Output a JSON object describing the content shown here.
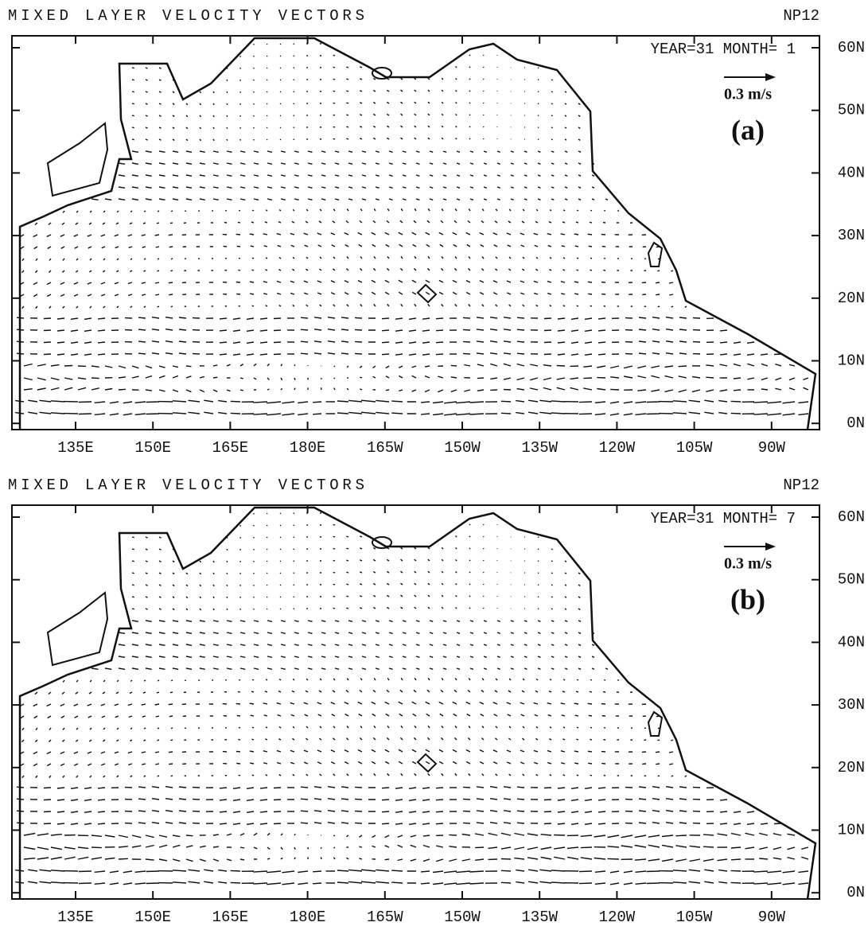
{
  "panels": [
    {
      "title": "MIXED LAYER VELOCITY VECTORS",
      "model": "NP12",
      "date": "YEAR=31 MONTH= 1",
      "scale": "0.3 m/s",
      "label": "(a)",
      "lat_labels": [
        "60N",
        "50N",
        "40N",
        "30N",
        "20N",
        "10N",
        "0N"
      ],
      "lon_labels": [
        "135E",
        "150E",
        "165E",
        "180E",
        "165W",
        "150W",
        "135W",
        "120W",
        "105W",
        "90W"
      ]
    },
    {
      "title": "MIXED LAYER VELOCITY VECTORS",
      "model": "NP12",
      "date": "YEAR=31 MONTH= 7",
      "scale": "0.3 m/s",
      "label": "(b)",
      "lat_labels": [
        "60N",
        "50N",
        "40N",
        "30N",
        "20N",
        "10N",
        "0N"
      ],
      "lon_labels": [
        "135E",
        "150E",
        "165E",
        "180E",
        "165W",
        "150W",
        "135W",
        "120W",
        "105W",
        "90W"
      ]
    }
  ]
}
